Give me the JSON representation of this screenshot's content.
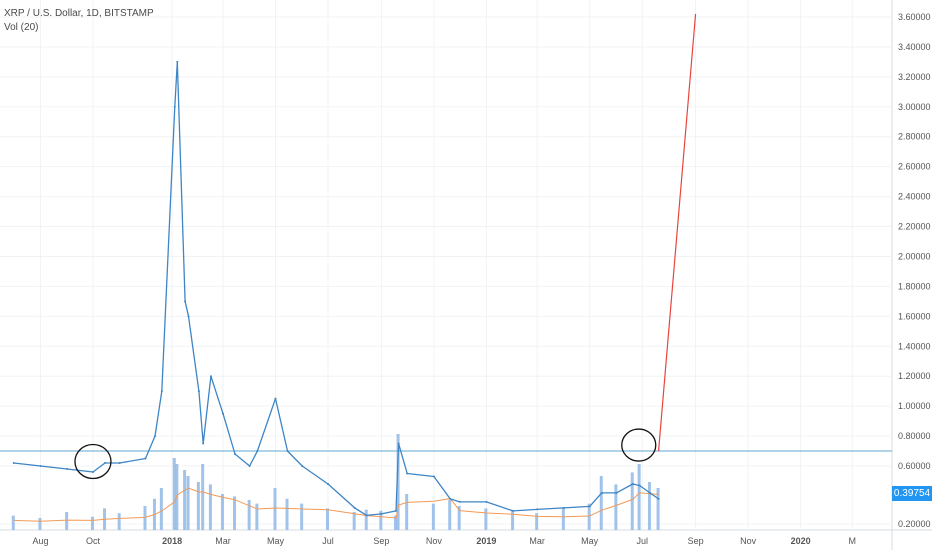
{
  "header": {
    "symbol_line": "XRP / U.S. Dollar, 1D, BITSTAMP",
    "indicator_line": "Vol (20)"
  },
  "colors": {
    "price_line": "#3d85c6",
    "horizontal_level": "#5fa8d3",
    "projection": "#e8453c",
    "volume_bar": "#90b8e6",
    "volume_ma": "#f39a57",
    "axis_text": "#555555",
    "price_tag": "#2196f3",
    "grid": "#f0f3f6"
  },
  "annotations": {
    "circles": "hand-drawn black circles around Oct 2017 and Jun 2019 price areas",
    "projection": "red line from ~0.70 (Jul 2019) rising to ~3.62 (Sep 2019)"
  },
  "chart_data": {
    "type": "line",
    "title": "XRP / U.S. Dollar, 1D, BITSTAMP",
    "xlabel": "",
    "ylabel": "",
    "ylim": [
      0.15,
      3.75
    ],
    "y_ticks": [
      "3.60000",
      "3.40000",
      "3.20000",
      "3.00000",
      "2.80000",
      "2.60000",
      "2.40000",
      "2.20000",
      "2.00000",
      "1.80000",
      "1.60000",
      "1.40000",
      "1.20000",
      "1.00000",
      "0.80000",
      "0.60000",
      "0.20000"
    ],
    "x_ticks": [
      "Aug",
      "Oct",
      "2018",
      "Mar",
      "May",
      "Jul",
      "Sep",
      "Nov",
      "2019",
      "Mar",
      "May",
      "Jul",
      "Sep",
      "Nov",
      "2020",
      "M"
    ],
    "last_price_label": "0.39754",
    "horizontal_level": 0.7,
    "series": [
      {
        "name": "XRP / U.S. Dollar",
        "x": [
          "2017-07-01",
          "2017-08-01",
          "2017-09-01",
          "2017-10-01",
          "2017-10-15",
          "2017-11-01",
          "2017-12-01",
          "2017-12-12",
          "2017-12-20",
          "2018-01-04",
          "2018-01-07",
          "2018-01-16",
          "2018-01-20",
          "2018-02-01",
          "2018-02-06",
          "2018-02-15",
          "2018-03-01",
          "2018-03-15",
          "2018-04-01",
          "2018-04-10",
          "2018-05-01",
          "2018-05-15",
          "2018-06-01",
          "2018-07-01",
          "2018-08-01",
          "2018-08-15",
          "2018-09-01",
          "2018-09-18",
          "2018-09-21",
          "2018-10-01",
          "2018-11-01",
          "2018-11-20",
          "2018-12-01",
          "2019-01-01",
          "2019-02-01",
          "2019-03-01",
          "2019-04-01",
          "2019-05-01",
          "2019-05-15",
          "2019-06-01",
          "2019-06-20",
          "2019-06-28",
          "2019-07-10",
          "2019-07-20"
        ],
        "values": [
          0.62,
          0.6,
          0.58,
          0.56,
          0.62,
          0.62,
          0.65,
          0.8,
          1.1,
          3.0,
          3.3,
          1.7,
          1.6,
          1.1,
          0.75,
          1.2,
          0.95,
          0.68,
          0.6,
          0.7,
          1.05,
          0.7,
          0.6,
          0.48,
          0.32,
          0.27,
          0.28,
          0.3,
          0.75,
          0.55,
          0.53,
          0.38,
          0.36,
          0.36,
          0.3,
          0.31,
          0.32,
          0.33,
          0.42,
          0.42,
          0.48,
          0.47,
          0.42,
          0.38
        ]
      },
      {
        "name": "Projection",
        "x": [
          "2019-07-20",
          "2019-09-01"
        ],
        "values": [
          0.7,
          3.62
        ]
      },
      {
        "name": "Vol (20)",
        "values": [
          0.12,
          0.1,
          0.15,
          0.11,
          0.18,
          0.14,
          0.2,
          0.26,
          0.35,
          0.6,
          0.55,
          0.5,
          0.45,
          0.4,
          0.55,
          0.38,
          0.3,
          0.28,
          0.25,
          0.22,
          0.35,
          0.26,
          0.22,
          0.18,
          0.15,
          0.17,
          0.16,
          0.12,
          0.8,
          0.3,
          0.22,
          0.25,
          0.2,
          0.18,
          0.16,
          0.14,
          0.18,
          0.22,
          0.45,
          0.38,
          0.48,
          0.55,
          0.4,
          0.35
        ]
      }
    ],
    "grid": true,
    "legend": "top-left"
  }
}
